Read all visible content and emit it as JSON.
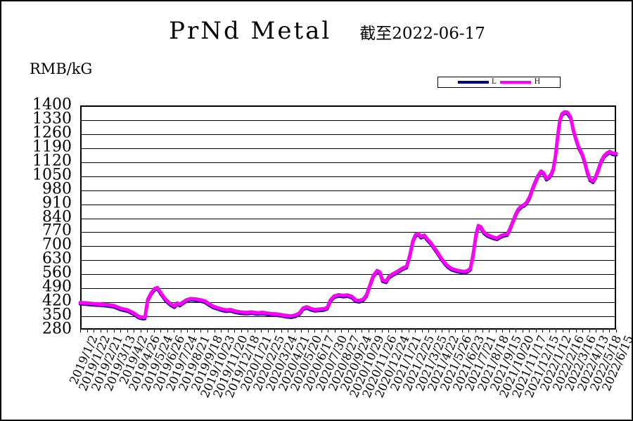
{
  "chart_data": {
    "type": "line",
    "title": "PrNd Metal",
    "subtitle": "截至2022-06-17",
    "unit_label": "RMB/kG",
    "xlabel": "",
    "ylabel": "RMB/kG",
    "ylim": [
      280,
      1400
    ],
    "ytick_step": 70,
    "grid": "horizontal",
    "legend_position": "top-right-box",
    "legend": [
      {
        "label": "L",
        "color": "#000080"
      },
      {
        "label": "H",
        "color": "#FF00FF"
      }
    ],
    "x_labels": [
      "2019/1/2",
      "2019/1/22",
      "2019/2/21",
      "2019/3/13",
      "2019/4/2",
      "2019/4/26",
      "2019/5/24",
      "2019/6/26",
      "2019/7/24",
      "2019/8/21",
      "2019/9/18",
      "2019/10/23",
      "2019/11/20",
      "2019/12/18",
      "2020/1/21",
      "2020/2/25",
      "2020/3/24",
      "2020/4/21",
      "2020/5/20",
      "2020/6/17",
      "2020/7/30",
      "2020/8/27",
      "2020/9/24",
      "2020/10/29",
      "2020/11/26",
      "2020/12/24",
      "2021/1/21",
      "2021/2/25",
      "2021/3/25",
      "2021/4/22",
      "2021/5/26",
      "2021/6/23",
      "2021/7/21",
      "2021/8/18",
      "2021/9/15",
      "2021/10/20",
      "2021/11/17",
      "2021/12/15",
      "2022/1/12",
      "2022/2/16",
      "2022/3/16",
      "2022/4/13",
      "2022/5/18",
      "2022/6/15"
    ],
    "series": [
      {
        "name": "L",
        "color": "#000080",
        "derived": "H_minus_offset",
        "offset": -8
      },
      {
        "name": "H",
        "color": "#FF00FF",
        "points": [
          [
            0,
            415
          ],
          [
            0.013,
            413
          ],
          [
            0.024,
            410
          ],
          [
            0.037,
            408
          ],
          [
            0.05,
            405
          ],
          [
            0.063,
            400
          ],
          [
            0.076,
            386
          ],
          [
            0.089,
            378
          ],
          [
            0.1,
            363
          ],
          [
            0.109,
            346
          ],
          [
            0.117,
            341
          ],
          [
            0.121,
            342
          ],
          [
            0.126,
            430
          ],
          [
            0.133,
            465
          ],
          [
            0.139,
            485
          ],
          [
            0.144,
            490
          ],
          [
            0.151,
            462
          ],
          [
            0.159,
            432
          ],
          [
            0.168,
            410
          ],
          [
            0.176,
            398
          ],
          [
            0.181,
            413
          ],
          [
            0.186,
            406
          ],
          [
            0.192,
            418
          ],
          [
            0.198,
            428
          ],
          [
            0.206,
            435
          ],
          [
            0.215,
            433
          ],
          [
            0.224,
            429
          ],
          [
            0.232,
            424
          ],
          [
            0.24,
            410
          ],
          [
            0.248,
            397
          ],
          [
            0.257,
            389
          ],
          [
            0.265,
            382
          ],
          [
            0.273,
            378
          ],
          [
            0.281,
            380
          ],
          [
            0.289,
            373
          ],
          [
            0.299,
            368
          ],
          [
            0.31,
            366
          ],
          [
            0.32,
            368
          ],
          [
            0.331,
            364
          ],
          [
            0.341,
            366
          ],
          [
            0.352,
            361
          ],
          [
            0.362,
            359
          ],
          [
            0.373,
            356
          ],
          [
            0.383,
            351
          ],
          [
            0.394,
            348
          ],
          [
            0.402,
            353
          ],
          [
            0.409,
            363
          ],
          [
            0.416,
            388
          ],
          [
            0.423,
            394
          ],
          [
            0.43,
            386
          ],
          [
            0.438,
            380
          ],
          [
            0.446,
            382
          ],
          [
            0.454,
            384
          ],
          [
            0.461,
            390
          ],
          [
            0.467,
            428
          ],
          [
            0.474,
            448
          ],
          [
            0.482,
            454
          ],
          [
            0.491,
            451
          ],
          [
            0.499,
            453
          ],
          [
            0.507,
            446
          ],
          [
            0.514,
            428
          ],
          [
            0.521,
            425
          ],
          [
            0.528,
            432
          ],
          [
            0.534,
            452
          ],
          [
            0.541,
            505
          ],
          [
            0.547,
            550
          ],
          [
            0.554,
            575
          ],
          [
            0.559,
            568
          ],
          [
            0.564,
            528
          ],
          [
            0.571,
            522
          ],
          [
            0.576,
            545
          ],
          [
            0.583,
            558
          ],
          [
            0.589,
            566
          ],
          [
            0.596,
            578
          ],
          [
            0.602,
            588
          ],
          [
            0.609,
            596
          ],
          [
            0.615,
            650
          ],
          [
            0.621,
            725
          ],
          [
            0.626,
            755
          ],
          [
            0.631,
            760
          ],
          [
            0.636,
            745
          ],
          [
            0.642,
            752
          ],
          [
            0.647,
            735
          ],
          [
            0.654,
            715
          ],
          [
            0.66,
            692
          ],
          [
            0.667,
            665
          ],
          [
            0.673,
            640
          ],
          [
            0.68,
            615
          ],
          [
            0.686,
            598
          ],
          [
            0.693,
            585
          ],
          [
            0.701,
            578
          ],
          [
            0.709,
            573
          ],
          [
            0.717,
            570
          ],
          [
            0.723,
            575
          ],
          [
            0.728,
            585
          ],
          [
            0.733,
            650
          ],
          [
            0.739,
            760
          ],
          [
            0.743,
            800
          ],
          [
            0.748,
            792
          ],
          [
            0.753,
            768
          ],
          [
            0.759,
            755
          ],
          [
            0.765,
            748
          ],
          [
            0.772,
            741
          ],
          [
            0.778,
            737
          ],
          [
            0.785,
            749
          ],
          [
            0.791,
            755
          ],
          [
            0.797,
            758
          ],
          [
            0.802,
            785
          ],
          [
            0.807,
            818
          ],
          [
            0.812,
            852
          ],
          [
            0.817,
            880
          ],
          [
            0.823,
            898
          ],
          [
            0.828,
            903
          ],
          [
            0.833,
            915
          ],
          [
            0.839,
            945
          ],
          [
            0.844,
            985
          ],
          [
            0.849,
            1018
          ],
          [
            0.854,
            1048
          ],
          [
            0.86,
            1072
          ],
          [
            0.865,
            1062
          ],
          [
            0.87,
            1035
          ],
          [
            0.875,
            1044
          ],
          [
            0.879,
            1058
          ],
          [
            0.883,
            1085
          ],
          [
            0.887,
            1150
          ],
          [
            0.891,
            1245
          ],
          [
            0.895,
            1325
          ],
          [
            0.899,
            1358
          ],
          [
            0.904,
            1368
          ],
          [
            0.909,
            1366
          ],
          [
            0.915,
            1342
          ],
          [
            0.92,
            1280
          ],
          [
            0.925,
            1232
          ],
          [
            0.93,
            1192
          ],
          [
            0.936,
            1162
          ],
          [
            0.941,
            1122
          ],
          [
            0.946,
            1068
          ],
          [
            0.951,
            1032
          ],
          [
            0.957,
            1022
          ],
          [
            0.962,
            1045
          ],
          [
            0.967,
            1082
          ],
          [
            0.972,
            1122
          ],
          [
            0.978,
            1150
          ],
          [
            0.983,
            1162
          ],
          [
            0.988,
            1170
          ],
          [
            0.993,
            1162
          ],
          [
            1,
            1160
          ]
        ]
      }
    ]
  },
  "layout_values": {
    "minor_tick_count": 80
  }
}
